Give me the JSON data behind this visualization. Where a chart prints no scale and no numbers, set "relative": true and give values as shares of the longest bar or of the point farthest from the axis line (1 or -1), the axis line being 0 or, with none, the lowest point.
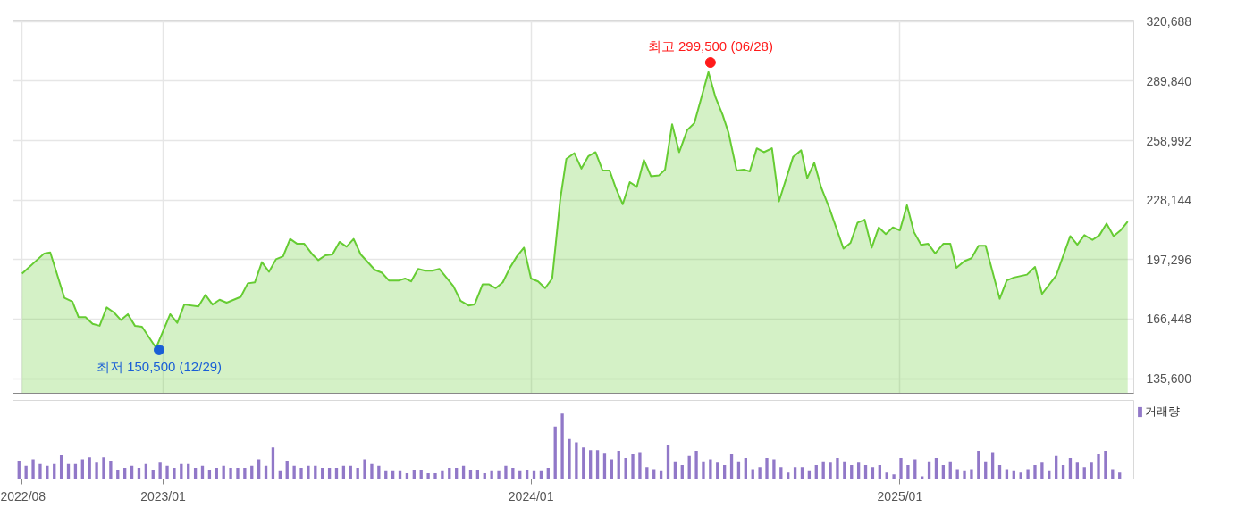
{
  "chart_data": [
    {
      "type": "area",
      "grid": true,
      "tick_labels": "y",
      "xlim": [
        "2022-08-06",
        "2025-08-22"
      ],
      "xticks": [
        {
          "value": "2022-08-15",
          "label": null
        },
        {
          "value": "2023-01-02",
          "label": null
        },
        {
          "value": "2024-01-02",
          "label": null
        },
        {
          "value": "2025-01-02",
          "label": null
        }
      ],
      "ylim": [
        128000,
        321500
      ],
      "yticks": [
        {
          "value": 135600,
          "label": "135,600"
        },
        {
          "value": 166448,
          "label": "166,448"
        },
        {
          "value": 197296,
          "label": "197,296"
        },
        {
          "value": 228144,
          "label": "228,144"
        },
        {
          "value": 258992,
          "label": "258,992"
        },
        {
          "value": 289840,
          "label": "289,840"
        },
        {
          "value": 320688,
          "label": "320,688"
        }
      ],
      "series": [
        {
          "type": "area",
          "color": "#66cc33",
          "x": [
            "2022-08-15",
            "2022-09-06",
            "2022-09-12",
            "2022-09-26",
            "2022-10-04",
            "2022-10-10",
            "2022-10-17",
            "2022-10-24",
            "2022-10-31",
            "2022-11-07",
            "2022-11-14",
            "2022-11-21",
            "2022-11-28",
            "2022-12-05",
            "2022-12-12",
            "2022-12-26",
            "2023-01-09",
            "2023-01-16",
            "2023-01-23",
            "2023-02-06",
            "2023-02-13",
            "2023-02-20",
            "2023-02-27",
            "2023-03-06",
            "2023-03-20",
            "2023-03-27",
            "2023-04-03",
            "2023-04-10",
            "2023-04-17",
            "2023-04-24",
            "2023-05-01",
            "2023-05-08",
            "2023-05-15",
            "2023-05-22",
            "2023-05-30",
            "2023-06-05",
            "2023-06-12",
            "2023-06-19",
            "2023-06-26",
            "2023-07-03",
            "2023-07-10",
            "2023-07-17",
            "2023-07-31",
            "2023-08-07",
            "2023-08-14",
            "2023-08-24",
            "2023-08-30",
            "2023-09-05",
            "2023-09-12",
            "2023-09-19",
            "2023-09-26",
            "2023-10-03",
            "2023-10-10",
            "2023-10-17",
            "2023-10-24",
            "2023-11-01",
            "2023-11-07",
            "2023-11-15",
            "2023-11-21",
            "2023-11-28",
            "2023-12-05",
            "2023-12-12",
            "2023-12-19",
            "2023-12-26",
            "2024-01-02",
            "2024-01-09",
            "2024-01-16",
            "2024-01-23",
            "2024-01-31",
            "2024-02-06",
            "2024-02-14",
            "2024-02-21",
            "2024-02-28",
            "2024-03-06",
            "2024-03-13",
            "2024-03-20",
            "2024-03-26",
            "2024-04-02",
            "2024-04-09",
            "2024-04-16",
            "2024-04-23",
            "2024-04-30",
            "2024-05-08",
            "2024-05-14",
            "2024-05-21",
            "2024-05-28",
            "2024-06-05",
            "2024-06-12",
            "2024-06-26",
            "2024-07-03",
            "2024-07-10",
            "2024-07-16",
            "2024-07-24",
            "2024-07-31",
            "2024-08-06",
            "2024-08-13",
            "2024-08-20",
            "2024-08-28",
            "2024-09-04",
            "2024-09-18",
            "2024-09-26",
            "2024-10-02",
            "2024-10-09",
            "2024-10-16",
            "2024-10-24",
            "2024-11-07",
            "2024-11-14",
            "2024-11-21",
            "2024-11-28",
            "2024-12-05",
            "2024-12-12",
            "2024-12-19",
            "2024-12-26",
            "2025-01-02",
            "2025-01-09",
            "2025-01-16",
            "2025-01-23",
            "2025-01-30",
            "2025-02-06",
            "2025-02-14",
            "2025-02-21",
            "2025-02-27",
            "2025-03-07",
            "2025-03-14",
            "2025-03-21",
            "2025-03-28",
            "2025-04-11",
            "2025-04-18",
            "2025-04-25",
            "2025-05-08",
            "2025-05-16",
            "2025-05-23",
            "2025-06-06",
            "2025-06-20",
            "2025-06-27",
            "2025-07-04",
            "2025-07-12",
            "2025-07-19",
            "2025-07-26",
            "2025-08-02",
            "2025-08-09",
            "2025-08-16"
          ],
          "values": [
            190000,
            200500,
            201000,
            177500,
            175500,
            167500,
            167500,
            164000,
            163000,
            172500,
            170000,
            166000,
            169000,
            163000,
            162500,
            151500,
            169000,
            164500,
            174000,
            173000,
            179000,
            174000,
            176500,
            175000,
            178000,
            185000,
            185500,
            196000,
            191000,
            197500,
            199000,
            208000,
            205500,
            205500,
            200000,
            197000,
            199500,
            200000,
            206500,
            204000,
            208000,
            200000,
            192000,
            190500,
            186500,
            186500,
            187500,
            186000,
            192500,
            191500,
            191500,
            192500,
            188000,
            183500,
            176000,
            173500,
            174000,
            184500,
            184500,
            182500,
            185500,
            193000,
            199000,
            203500,
            187500,
            186000,
            182500,
            187500,
            228500,
            249500,
            252500,
            244500,
            251000,
            253000,
            243500,
            243500,
            234500,
            226000,
            237500,
            235000,
            249000,
            240500,
            241000,
            244000,
            267500,
            253000,
            264500,
            268000,
            294500,
            281500,
            272500,
            263000,
            243500,
            244000,
            243000,
            255000,
            253000,
            255000,
            227500,
            250500,
            254000,
            239500,
            247500,
            234500,
            224000,
            203000,
            206000,
            216500,
            218000,
            203500,
            214000,
            210500,
            214000,
            212500,
            225500,
            211500,
            205000,
            205500,
            200500,
            205500,
            205500,
            193000,
            196500,
            198000,
            204500,
            204500,
            177000,
            186500,
            188000,
            189500,
            193500,
            179500,
            189000,
            209500,
            205000,
            210000,
            207500,
            210000,
            216000,
            209500,
            212500,
            217000
          ]
        },
        {
          "type": "scatter",
          "color": "#ff1a1a",
          "x": [
            "2024-06-28"
          ],
          "values": [
            299500
          ]
        },
        {
          "type": "scatter",
          "color": "#1a5fd6",
          "x": [
            "2022-12-29"
          ],
          "values": [
            150500
          ]
        }
      ],
      "annotations": [
        {
          "text": "최고 299,500 (06/28)",
          "x": "2024-06-28",
          "y": 299500
        },
        {
          "text": "최저 150,500 (12/29)",
          "x": "2022-12-29",
          "y": 150500
        }
      ]
    },
    {
      "type": "bar",
      "relative": true,
      "legend": "top right",
      "tick_labels": "x",
      "xlim": [
        "2022-08-06",
        "2025-08-22"
      ],
      "xticks": [
        {
          "value": "2022-08-15",
          "label": "2022/08"
        },
        {
          "value": "2023-01-02",
          "label": "2023/01"
        },
        {
          "value": "2024-01-02",
          "label": "2024/01"
        },
        {
          "value": "2025-01-02",
          "label": "2025/01"
        }
      ],
      "x": [
        "2022-08-12",
        "2022-08-19",
        "2022-08-26",
        "2022-09-02",
        "2022-09-09",
        "2022-09-16",
        "2022-09-23",
        "2022-09-30",
        "2022-10-07",
        "2022-10-14",
        "2022-10-21",
        "2022-10-28",
        "2022-11-04",
        "2022-11-11",
        "2022-11-18",
        "2022-11-25",
        "2022-12-02",
        "2022-12-09",
        "2022-12-16",
        "2022-12-23",
        "2022-12-30",
        "2023-01-06",
        "2023-01-13",
        "2023-01-20",
        "2023-01-27",
        "2023-02-03",
        "2023-02-10",
        "2023-02-17",
        "2023-02-24",
        "2023-03-03",
        "2023-03-10",
        "2023-03-17",
        "2023-03-24",
        "2023-03-31",
        "2023-04-07",
        "2023-04-14",
        "2023-04-21",
        "2023-04-28",
        "2023-05-05",
        "2023-05-12",
        "2023-05-19",
        "2023-05-26",
        "2023-06-02",
        "2023-06-09",
        "2023-06-16",
        "2023-06-23",
        "2023-06-30",
        "2023-07-07",
        "2023-07-14",
        "2023-07-21",
        "2023-07-28",
        "2023-08-04",
        "2023-08-11",
        "2023-08-18",
        "2023-08-25",
        "2023-09-01",
        "2023-09-08",
        "2023-09-15",
        "2023-09-22",
        "2023-09-29",
        "2023-10-06",
        "2023-10-13",
        "2023-10-20",
        "2023-10-27",
        "2023-11-03",
        "2023-11-10",
        "2023-11-17",
        "2023-11-24",
        "2023-12-01",
        "2023-12-08",
        "2023-12-15",
        "2023-12-22",
        "2023-12-29",
        "2024-01-05",
        "2024-01-12",
        "2024-01-19",
        "2024-01-26",
        "2024-02-02",
        "2024-02-09",
        "2024-02-16",
        "2024-02-23",
        "2024-03-01",
        "2024-03-08",
        "2024-03-15",
        "2024-03-22",
        "2024-03-29",
        "2024-04-05",
        "2024-04-12",
        "2024-04-19",
        "2024-04-26",
        "2024-05-03",
        "2024-05-10",
        "2024-05-17",
        "2024-05-24",
        "2024-05-31",
        "2024-06-07",
        "2024-06-14",
        "2024-06-21",
        "2024-06-28",
        "2024-07-05",
        "2024-07-12",
        "2024-07-19",
        "2024-07-26",
        "2024-08-02",
        "2024-08-09",
        "2024-08-16",
        "2024-08-23",
        "2024-08-30",
        "2024-09-06",
        "2024-09-13",
        "2024-09-20",
        "2024-09-27",
        "2024-10-04",
        "2024-10-11",
        "2024-10-18",
        "2024-10-25",
        "2024-11-01",
        "2024-11-08",
        "2024-11-15",
        "2024-11-22",
        "2024-11-29",
        "2024-12-06",
        "2024-12-13",
        "2024-12-20",
        "2024-12-27",
        "2025-01-03",
        "2025-01-10",
        "2025-01-17",
        "2025-01-24",
        "2025-01-31",
        "2025-02-07",
        "2025-02-14",
        "2025-02-21",
        "2025-02-28",
        "2025-03-07",
        "2025-03-14",
        "2025-03-21",
        "2025-03-28",
        "2025-04-04",
        "2025-04-11",
        "2025-04-18",
        "2025-04-25",
        "2025-05-02",
        "2025-05-09",
        "2025-05-16",
        "2025-05-23",
        "2025-05-30",
        "2025-06-06",
        "2025-06-13",
        "2025-06-20",
        "2025-06-27",
        "2025-07-04",
        "2025-07-11",
        "2025-07-18",
        "2025-07-25",
        "2025-08-01",
        "2025-08-08"
      ],
      "series": [
        {
          "name": "거래량",
          "color": "#9178c8",
          "values": [
            0.28,
            0.2,
            0.3,
            0.23,
            0.2,
            0.23,
            0.36,
            0.23,
            0.23,
            0.3,
            0.33,
            0.25,
            0.33,
            0.28,
            0.14,
            0.17,
            0.2,
            0.17,
            0.23,
            0.14,
            0.25,
            0.2,
            0.17,
            0.23,
            0.23,
            0.17,
            0.2,
            0.14,
            0.17,
            0.2,
            0.17,
            0.17,
            0.17,
            0.2,
            0.3,
            0.2,
            0.48,
            0.12,
            0.28,
            0.2,
            0.17,
            0.2,
            0.2,
            0.17,
            0.17,
            0.17,
            0.2,
            0.2,
            0.17,
            0.3,
            0.23,
            0.2,
            0.12,
            0.12,
            0.12,
            0.09,
            0.14,
            0.14,
            0.09,
            0.09,
            0.12,
            0.17,
            0.17,
            0.2,
            0.14,
            0.14,
            0.09,
            0.12,
            0.12,
            0.2,
            0.17,
            0.12,
            0.14,
            0.12,
            0.12,
            0.17,
            0.8,
            1,
            0.61,
            0.56,
            0.48,
            0.44,
            0.44,
            0.4,
            0.3,
            0.43,
            0.32,
            0.38,
            0.41,
            0.18,
            0.15,
            0.12,
            0.52,
            0.27,
            0.21,
            0.35,
            0.43,
            0.27,
            0.3,
            0.25,
            0.21,
            0.38,
            0.27,
            0.32,
            0.15,
            0.18,
            0.32,
            0.3,
            0.18,
            0.1,
            0.18,
            0.18,
            0.12,
            0.21,
            0.27,
            0.25,
            0.32,
            0.27,
            0.21,
            0.25,
            0.21,
            0.18,
            0.21,
            0.1,
            0.07,
            0.32,
            0.21,
            0.3,
            0.04,
            0.27,
            0.32,
            0.21,
            0.27,
            0.15,
            0.12,
            0.15,
            0.43,
            0.27,
            0.41,
            0.21,
            0.15,
            0.12,
            0.1,
            0.15,
            0.21,
            0.25,
            0.12,
            0.35,
            0.21,
            0.32,
            0.25,
            0.18,
            0.25,
            0.38,
            0.43,
            0.15,
            0.1
          ]
        }
      ]
    }
  ]
}
